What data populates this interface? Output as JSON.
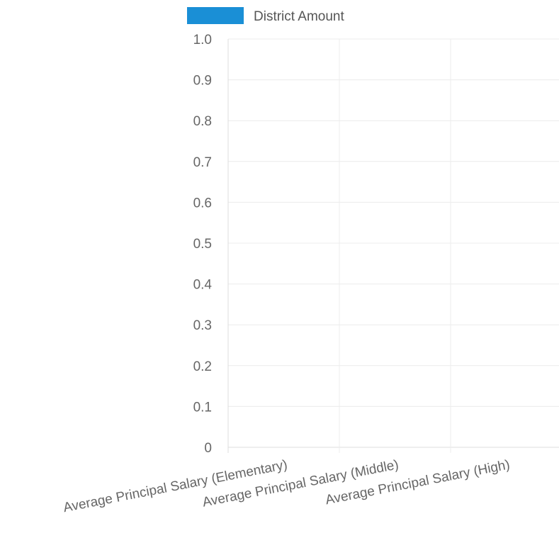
{
  "chart_data": {
    "type": "bar",
    "categories": [
      "Average Principal Salary (Elementary)",
      "Average Principal Salary (Middle)",
      "Average Principal Salary (High)"
    ],
    "series": [
      {
        "name": "District Amount",
        "values": [
          0,
          0,
          0
        ],
        "color": "#1a8fd6"
      }
    ],
    "ylim": [
      0,
      1.0
    ],
    "yticks": [
      "0",
      "0.1",
      "0.2",
      "0.3",
      "0.4",
      "0.5",
      "0.6",
      "0.7",
      "0.8",
      "0.9",
      "1.0"
    ],
    "grid": true,
    "legend_position": "top-center",
    "title": "",
    "xlabel": "",
    "ylabel": ""
  }
}
